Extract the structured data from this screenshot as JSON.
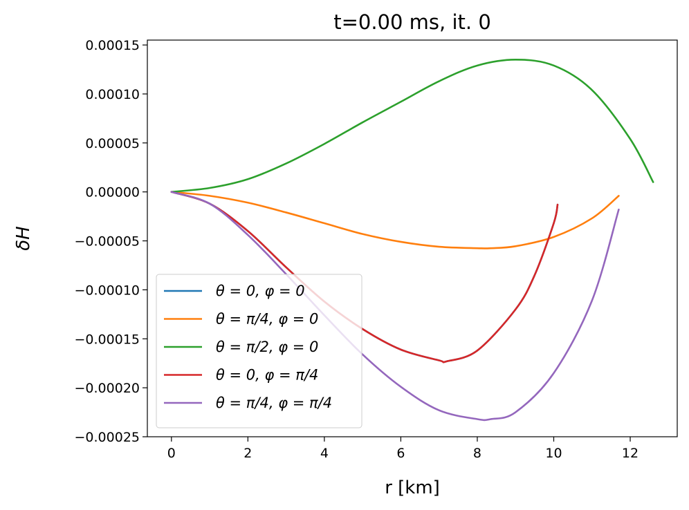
{
  "chart_data": {
    "type": "line",
    "title": "t=0.00 ms, it. 0",
    "xlabel": "r [km]",
    "ylabel": "δH",
    "xlim": [
      -0.63,
      13.23
    ],
    "ylim": [
      -0.00025,
      0.000155
    ],
    "xticks": [
      0,
      2,
      4,
      6,
      8,
      10,
      12
    ],
    "xtick_labels": [
      "0",
      "2",
      "4",
      "6",
      "8",
      "10",
      "12"
    ],
    "yticks": [
      0.00015,
      0.0001,
      5e-05,
      0.0,
      -5e-05,
      -0.0001,
      -0.00015,
      -0.0002,
      -0.00025
    ],
    "ytick_labels": [
      "0.00015",
      "0.00010",
      "0.00005",
      "0.00000",
      "−0.00005",
      "−0.00010",
      "−0.00015",
      "−0.00020",
      "−0.00025"
    ],
    "legend_position": "lower-left",
    "series": [
      {
        "name": "θ = 0, φ = 0",
        "color": "#1f77b4",
        "x": [
          0,
          1,
          2,
          3,
          4,
          5,
          6,
          7,
          7.2,
          8,
          9,
          9.5,
          10,
          10.1
        ],
        "y": [
          0,
          -1.2e-05,
          -4e-05,
          -7.7e-05,
          -0.000112,
          -0.00014,
          -0.000161,
          -0.000172,
          -0.000173,
          -0.000162,
          -0.00012,
          -8.5e-05,
          -3.2e-05,
          -1.3e-05
        ]
      },
      {
        "name": "θ = π/4, φ = 0",
        "color": "#ff7f0e",
        "x": [
          0,
          1,
          2,
          3,
          4,
          5,
          6,
          7,
          8,
          8.35,
          9,
          10,
          11,
          11.7
        ],
        "y": [
          0,
          -4e-06,
          -1.1e-05,
          -2.1e-05,
          -3.2e-05,
          -4.3e-05,
          -5.1e-05,
          -5.6e-05,
          -5.75e-05,
          -5.75e-05,
          -5.55e-05,
          -4.6e-05,
          -2.7e-05,
          -4e-06
        ]
      },
      {
        "name": "θ = π/2, φ = 0",
        "color": "#2ca02c",
        "x": [
          0,
          1,
          2,
          3,
          4,
          5,
          6,
          7,
          8,
          9,
          10,
          11,
          12,
          12.6
        ],
        "y": [
          0,
          4e-06,
          1.3e-05,
          2.9e-05,
          4.9e-05,
          7.1e-05,
          9.2e-05,
          0.000113,
          0.000129,
          0.000135,
          0.000129,
          0.000104,
          5.4e-05,
          1e-05
        ]
      },
      {
        "name": "θ = 0, φ = π/4",
        "color": "#d62728",
        "x": [
          0,
          1,
          2,
          3,
          4,
          5,
          6,
          7,
          7.2,
          8,
          9,
          9.5,
          10,
          10.1
        ],
        "y": [
          0,
          -1.2e-05,
          -4e-05,
          -7.7e-05,
          -0.000112,
          -0.00014,
          -0.000161,
          -0.000172,
          -0.000173,
          -0.000162,
          -0.00012,
          -8.5e-05,
          -3.2e-05,
          -1.3e-05
        ]
      },
      {
        "name": "θ = π/4, φ = π/4",
        "color": "#9467bd",
        "x": [
          0,
          1,
          2,
          3,
          4,
          5,
          6,
          7,
          8,
          8.35,
          9,
          10,
          11,
          11.7
        ],
        "y": [
          0,
          -1.2e-05,
          -4.4e-05,
          -8.4e-05,
          -0.000126,
          -0.000166,
          -0.000199,
          -0.000223,
          -0.000232,
          -0.000232,
          -0.000225,
          -0.000185,
          -0.000111,
          -1.8e-05
        ]
      }
    ]
  }
}
